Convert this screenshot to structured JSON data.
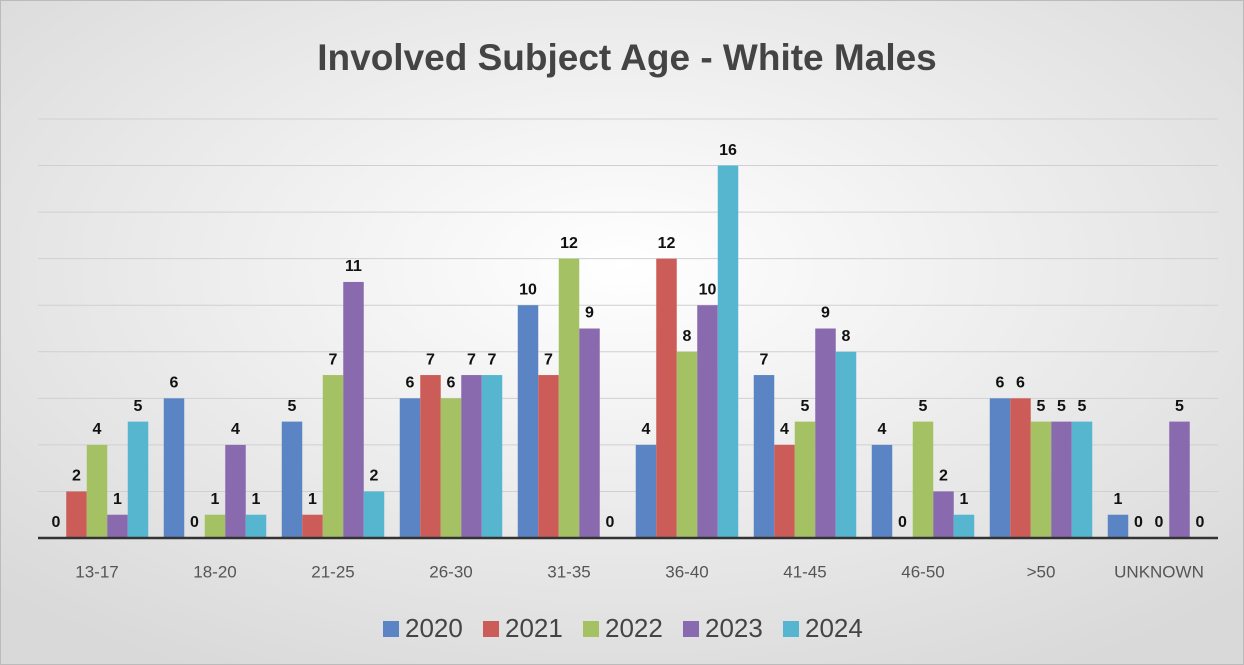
{
  "chart_data": {
    "type": "bar",
    "title": "Involved Subject Age - White Males",
    "categories": [
      "13-17",
      "18-20",
      "21-25",
      "26-30",
      "31-35",
      "36-40",
      "41-45",
      "46-50",
      ">50",
      "UNKNOWN"
    ],
    "series": [
      {
        "name": "2020",
        "color": "#5b84c4",
        "values": [
          0,
          6,
          5,
          6,
          10,
          4,
          7,
          4,
          6,
          1
        ]
      },
      {
        "name": "2021",
        "color": "#cc5c58",
        "values": [
          2,
          0,
          1,
          7,
          7,
          12,
          4,
          0,
          6,
          0
        ]
      },
      {
        "name": "2022",
        "color": "#a4c263",
        "values": [
          4,
          1,
          7,
          6,
          12,
          8,
          5,
          5,
          5,
          0
        ]
      },
      {
        "name": "2023",
        "color": "#8a6aae",
        "values": [
          1,
          4,
          11,
          7,
          9,
          10,
          9,
          2,
          5,
          5
        ]
      },
      {
        "name": "2024",
        "color": "#56b6cf",
        "values": [
          5,
          1,
          2,
          7,
          0,
          16,
          8,
          1,
          5,
          0
        ]
      }
    ],
    "ylim": [
      0,
      18
    ],
    "yticks": [
      0,
      2,
      4,
      6,
      8,
      10,
      12,
      14,
      16,
      18
    ],
    "grid": true,
    "legend": "bottom"
  }
}
